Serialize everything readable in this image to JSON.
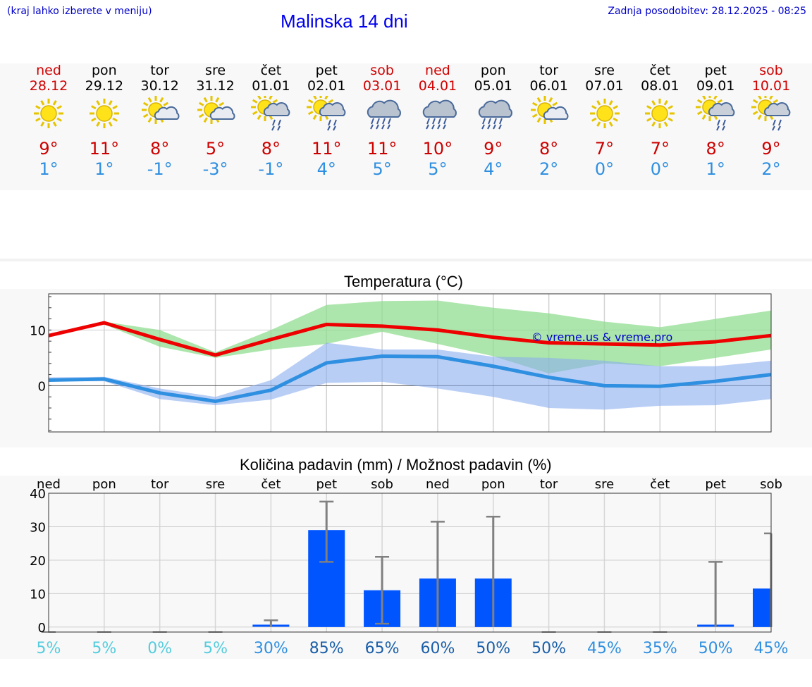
{
  "header": {
    "hint": "(kraj lahko izberete v meniju)",
    "title": "Malinska 14 dni",
    "updated": "Zadnja posodobitev: 28.12.2025 - 08:25"
  },
  "days": [
    {
      "name": "ned",
      "date": "28.12",
      "weekend": true,
      "icon": "sun-icon",
      "max": "9°",
      "min": "1°"
    },
    {
      "name": "pon",
      "date": "29.12",
      "weekend": false,
      "icon": "sun-icon",
      "max": "11°",
      "min": "1°"
    },
    {
      "name": "tor",
      "date": "30.12",
      "weekend": false,
      "icon": "sun-cloud-icon",
      "max": "8°",
      "min": "-1°"
    },
    {
      "name": "sre",
      "date": "31.12",
      "weekend": false,
      "icon": "sun-cloud-icon",
      "max": "5°",
      "min": "-3°"
    },
    {
      "name": "čet",
      "date": "01.01",
      "weekend": false,
      "icon": "sun-rain-cloud-icon",
      "max": "8°",
      "min": "-1°"
    },
    {
      "name": "pet",
      "date": "02.01",
      "weekend": false,
      "icon": "sun-rain-cloud-icon",
      "max": "11°",
      "min": "4°"
    },
    {
      "name": "sob",
      "date": "03.01",
      "weekend": true,
      "icon": "rain-cloud-icon",
      "max": "11°",
      "min": "5°"
    },
    {
      "name": "ned",
      "date": "04.01",
      "weekend": true,
      "icon": "rain-cloud-icon",
      "max": "10°",
      "min": "5°"
    },
    {
      "name": "pon",
      "date": "05.01",
      "weekend": false,
      "icon": "rain-cloud-icon",
      "max": "9°",
      "min": "4°"
    },
    {
      "name": "tor",
      "date": "06.01",
      "weekend": false,
      "icon": "sun-cloud-icon",
      "max": "8°",
      "min": "2°"
    },
    {
      "name": "sre",
      "date": "07.01",
      "weekend": false,
      "icon": "sun-icon",
      "max": "7°",
      "min": "0°"
    },
    {
      "name": "čet",
      "date": "08.01",
      "weekend": false,
      "icon": "sun-icon",
      "max": "7°",
      "min": "0°"
    },
    {
      "name": "pet",
      "date": "09.01",
      "weekend": false,
      "icon": "sun-rain-cloud-icon",
      "max": "8°",
      "min": "1°"
    },
    {
      "name": "sob",
      "date": "10.01",
      "weekend": true,
      "icon": "sun-rain-cloud-icon",
      "max": "9°",
      "min": "2°"
    }
  ],
  "chart_data": [
    {
      "type": "line",
      "title": "Temperatura (°C)",
      "watermark": "© vreme.us & vreme.pro",
      "xlabel": "",
      "ylabel": "",
      "ylim": [
        -8.3,
        16.5
      ],
      "yticks": [
        0,
        10
      ],
      "categories": [
        "28.12",
        "29.12",
        "30.12",
        "31.12",
        "01.01",
        "02.01",
        "03.01",
        "04.01",
        "05.01",
        "06.01",
        "07.01",
        "08.01",
        "09.01",
        "10.01"
      ],
      "series": [
        {
          "name": "max",
          "color": "#ee0000",
          "values": [
            9,
            11.3,
            8.3,
            5.5,
            8.3,
            11,
            10.7,
            10,
            8.7,
            7.7,
            7.5,
            7.3,
            7.9,
            9
          ]
        },
        {
          "name": "min",
          "color": "#2f8fe0",
          "values": [
            1,
            1.2,
            -1.3,
            -2.8,
            -0.8,
            4.1,
            5.3,
            5.2,
            3.5,
            1.5,
            0,
            -0.1,
            0.8,
            2
          ]
        }
      ],
      "bands": [
        {
          "name": "max-range",
          "color": "#8cdc8c",
          "upper": [
            9.2,
            11.5,
            10,
            6,
            10,
            14.5,
            15.2,
            15.3,
            14,
            13,
            11.5,
            10.5,
            12,
            13.5
          ],
          "lower": [
            8.8,
            11,
            7,
            5,
            6.5,
            7.5,
            9.7,
            7.5,
            5.3,
            2.2,
            4,
            3.5,
            5,
            6.5
          ]
        },
        {
          "name": "min-range",
          "color": "#8aaeee",
          "upper": [
            1.5,
            1.6,
            -0.5,
            -2,
            1,
            7.7,
            6.5,
            6.5,
            5.2,
            5,
            4.5,
            3.5,
            3.5,
            4.5
          ],
          "lower": [
            0.8,
            0.8,
            -2.4,
            -3.5,
            -2.5,
            0.5,
            0.7,
            -0.5,
            -2,
            -4,
            -4.3,
            -3.6,
            -3.5,
            -2.4
          ]
        }
      ]
    },
    {
      "type": "bar",
      "title": "Količina padavin (mm) / Možnost padavin (%)",
      "xlabel": "",
      "ylabel": "",
      "ylim": [
        -1.5,
        40
      ],
      "yticks": [
        0,
        10,
        20,
        30,
        40
      ],
      "day_labels": [
        "ned",
        "pon",
        "tor",
        "sre",
        "čet",
        "pet",
        "sob",
        "ned",
        "pon",
        "tor",
        "sre",
        "čet",
        "pet",
        "sob"
      ],
      "categories": [
        "28.12",
        "29.12",
        "30.12",
        "31.12",
        "01.01",
        "02.01",
        "03.01",
        "04.01",
        "05.01",
        "06.01",
        "07.01",
        "08.01",
        "09.01",
        "10.01"
      ],
      "values": [
        0,
        0,
        0,
        0,
        0.5,
        29,
        11,
        14.5,
        14.5,
        0,
        0,
        0,
        0.5,
        11.5
      ],
      "error_high": [
        0,
        0,
        0,
        0,
        2,
        37.5,
        21,
        31.5,
        33,
        0,
        0,
        0,
        19.5,
        28
      ],
      "error_low": [
        0,
        0,
        0,
        0,
        0,
        19.5,
        1,
        0,
        0,
        0,
        0,
        0,
        0,
        0
      ],
      "probability": [
        "5%",
        "5%",
        "0%",
        "5%",
        "30%",
        "85%",
        "65%",
        "60%",
        "50%",
        "50%",
        "45%",
        "35%",
        "50%",
        "45%"
      ],
      "probability_colors": [
        "#55ccdd",
        "#55ccdd",
        "#55ccdd",
        "#55ccdd",
        "#2f8fe0",
        "#1a5ea8",
        "#1a5ea8",
        "#1a5ea8",
        "#1a5ea8",
        "#1a5ea8",
        "#2f8fe0",
        "#2f8fe0",
        "#2f8fe0",
        "#2f8fe0"
      ],
      "bar_color": "#0055ff"
    }
  ]
}
